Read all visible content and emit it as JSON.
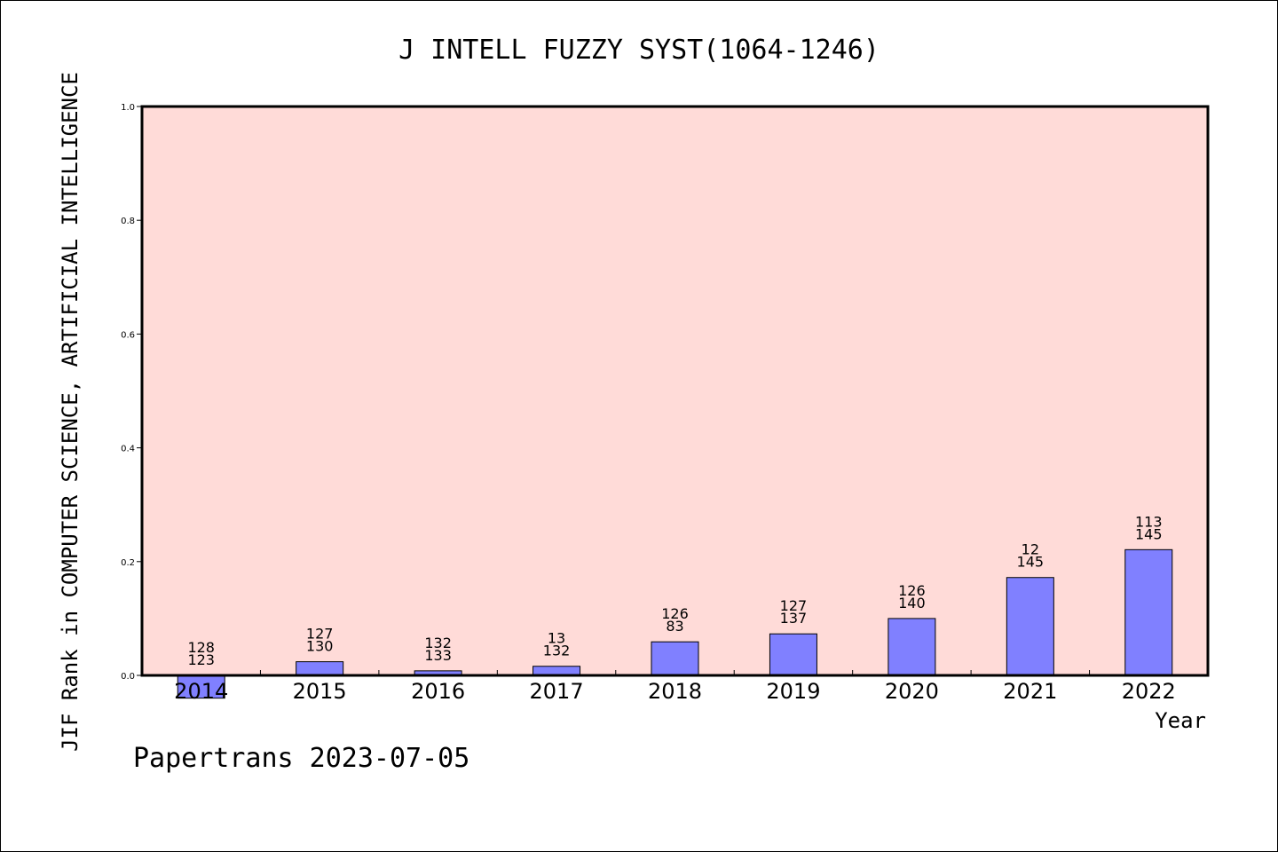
{
  "chart_data": {
    "type": "bar",
    "title": "J INTELL FUZZY SYST(1064-1246)",
    "xlabel": "Year",
    "ylabel": "JIF Rank in COMPUTER SCIENCE, ARTIFICIAL INTELLIGENCE",
    "ylim": [
      0,
      1
    ],
    "yticks": [
      "0.0",
      "0.2",
      "0.4",
      "0.6",
      "0.8",
      "1.0"
    ],
    "categories": [
      "2014",
      "2015",
      "2016",
      "2017",
      "2018",
      "2019",
      "2020",
      "2021",
      "2022"
    ],
    "values": [
      -0.04,
      0.024,
      0.008,
      0.016,
      0.059,
      0.073,
      0.1,
      0.172,
      0.221
    ],
    "rank_labels": [
      "128",
      "127",
      "132",
      "13",
      "126",
      "127",
      "126",
      "12",
      "113"
    ],
    "total_labels": [
      "123",
      "130",
      "133",
      "132",
      "83",
      "137",
      "140",
      "145",
      "145"
    ],
    "colors": {
      "plot_background": "#ffdbd8",
      "bar_fill": "#8080ff",
      "bar_stroke": "#000000"
    },
    "grid": false,
    "legend": "none"
  },
  "footer": {
    "watermark": "Papertrans 2023-07-05"
  }
}
